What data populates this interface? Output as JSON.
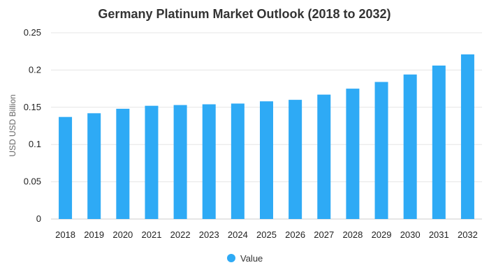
{
  "chart_data": {
    "type": "bar",
    "title": "Germany Platinum Market Outlook (2018 to 2032)",
    "xlabel": "",
    "ylabel": "USD USD Billion",
    "categories": [
      "2018",
      "2019",
      "2020",
      "2021",
      "2022",
      "2023",
      "2024",
      "2025",
      "2026",
      "2027",
      "2028",
      "2029",
      "2030",
      "2031",
      "2032"
    ],
    "series": [
      {
        "name": "Value",
        "color": "#2eaaf5",
        "values": [
          0.137,
          0.142,
          0.148,
          0.152,
          0.153,
          0.154,
          0.155,
          0.158,
          0.16,
          0.167,
          0.175,
          0.184,
          0.194,
          0.206,
          0.221
        ]
      }
    ],
    "ylim": [
      0,
      0.25
    ],
    "yticks": [
      "0",
      "0.05",
      "0.1",
      "0.15",
      "0.2",
      "0.25"
    ],
    "ytick_values": [
      0,
      0.05,
      0.1,
      0.15,
      0.2,
      0.25
    ],
    "grid": true,
    "legend": "bottom-center"
  }
}
